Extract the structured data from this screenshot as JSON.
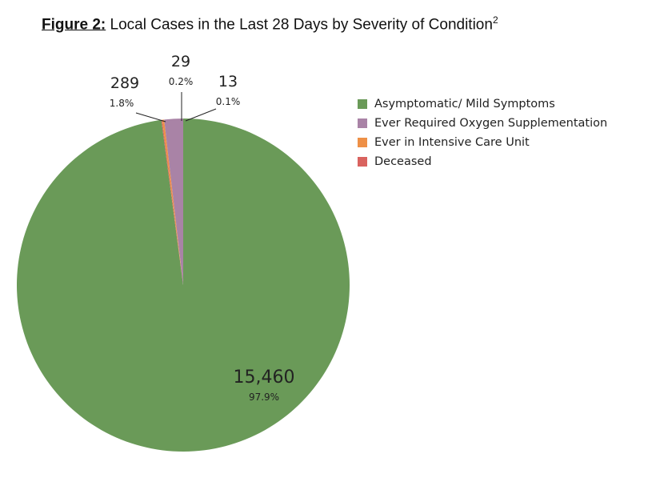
{
  "chart_data": {
    "type": "pie",
    "title_prefix": "Figure 2:",
    "title": "Local Cases in the Last 28 Days by Severity of Condition",
    "title_superscript": "2",
    "legend_position": "right",
    "slices": [
      {
        "name": "Asymptomatic/ Mild Symptoms",
        "value": 15460,
        "label": "15,460",
        "percent": "97.9%",
        "color": "#6a9a58"
      },
      {
        "name": "Deceased",
        "value": 13,
        "label": "13",
        "percent": "0.1%",
        "color": "#d9635f"
      },
      {
        "name": "Ever in Intensive Care Unit",
        "value": 29,
        "label": "29",
        "percent": "0.2%",
        "color": "#ee9047"
      },
      {
        "name": "Ever Required Oxygen Supplementation",
        "value": 289,
        "label": "289",
        "percent": "1.8%",
        "color": "#a983a6"
      }
    ],
    "legend": [
      "Asymptomatic/ Mild Symptoms",
      "Ever Required Oxygen Supplementation",
      "Ever in Intensive Care Unit",
      "Deceased"
    ]
  }
}
